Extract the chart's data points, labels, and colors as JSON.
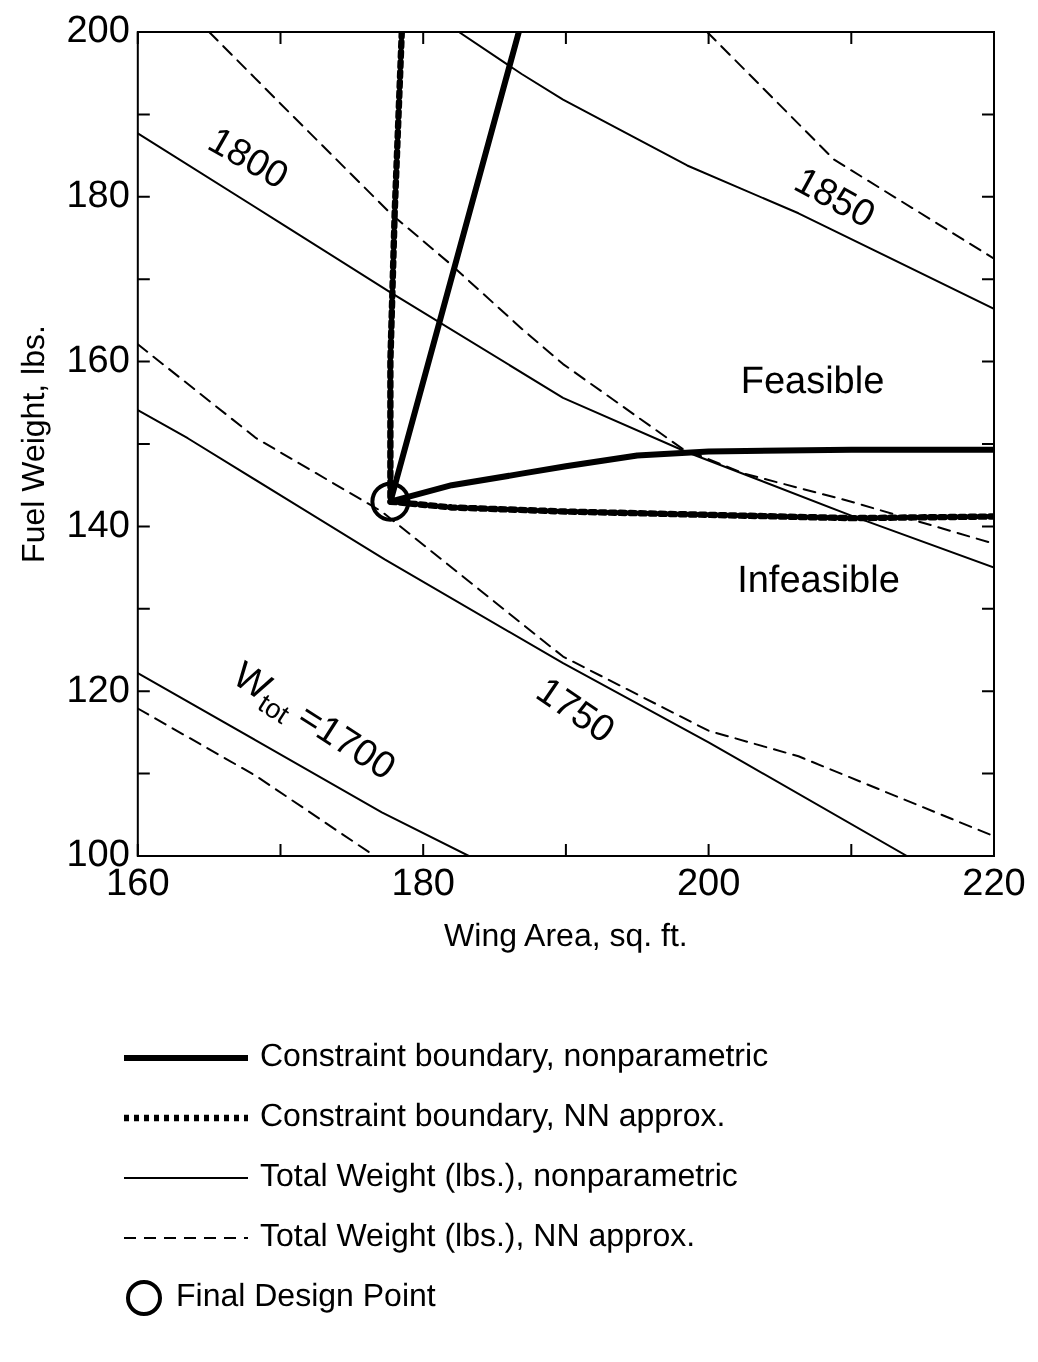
{
  "chart_data": {
    "type": "line",
    "xlabel": "Wing Area, sq. ft.",
    "ylabel": "Fuel Weight, lbs.",
    "xlim": [
      160,
      220
    ],
    "xticks": [
      160,
      {
        "value": 170,
        "label": null
      },
      180,
      {
        "value": 190,
        "label": null
      },
      200,
      {
        "value": 210,
        "label": null
      },
      220
    ],
    "ylim": [
      100,
      200
    ],
    "yticks": [
      100,
      {
        "value": 110,
        "label": null
      },
      120,
      {
        "value": 130,
        "label": null
      },
      140,
      {
        "value": 150,
        "label": null
      },
      160,
      {
        "value": 170,
        "label": null
      },
      180,
      {
        "value": 190,
        "label": null
      },
      200
    ],
    "grid": false,
    "legend": "bottom",
    "marker": "none",
    "series": [
      {
        "name": "Constraint boundary, nonparametric",
        "color": "#000000",
        "line_style": "solid",
        "x": [
          186.7,
          177.7,
          182,
          186.9,
          190,
          195,
          200,
          210,
          220
        ],
        "values": [
          200,
          143,
          145,
          146.4,
          147.3,
          148.6,
          149.1,
          149.3,
          149.3
        ]
      },
      {
        "name": "Constraint boundary, NN approx.",
        "color": "#000000",
        "line_style": "dotted",
        "x": [
          178.5,
          178,
          177.7,
          177.7,
          182,
          190,
          200,
          210,
          220
        ],
        "values": [
          200,
          178,
          160,
          143,
          142.3,
          141.8,
          141.4,
          141,
          141.2
        ]
      },
      {
        "name": "Total Weight (lbs.), nonparametric",
        "color": "#000000",
        "line_style": "solid",
        "x": [
          160,
          170.2,
          177.7,
          189.8,
          198.5,
          210,
          220
        ],
        "values": [
          187.7,
          176.6,
          168.4,
          155.6,
          149,
          141.3,
          135
        ]
      },
      {
        "name": "Total Weight (lbs.), NN approx.",
        "color": "#000000",
        "line_style": "dashed",
        "x": [
          165,
          170,
          177.7,
          181.8,
          186.9,
          189.8,
          198.1,
          202.5,
          210,
          220
        ],
        "values": [
          200,
          191.3,
          178,
          172,
          164,
          159.7,
          149.5,
          146.4,
          143,
          137.9
        ]
      },
      {
        "color": "#000000",
        "line_style": "solid",
        "x": [
          182.5,
          186.9,
          189.8,
          198.5,
          206.3,
          220
        ],
        "values": [
          200,
          194.9,
          191.8,
          183.8,
          178,
          166.4
        ]
      },
      {
        "color": "#000000",
        "line_style": "dashed",
        "x": [
          199.9,
          208.8,
          220
        ],
        "values": [
          200,
          184.5,
          172.5
        ]
      },
      {
        "color": "#000000",
        "line_style": "solid",
        "x": [
          160,
          163.5,
          177.3,
          189.8,
          200,
          213.9
        ],
        "values": [
          154.1,
          150.7,
          136,
          123.4,
          113.8,
          100
        ]
      },
      {
        "color": "#000000",
        "line_style": "dashed",
        "x": [
          160,
          168.3,
          177.1,
          189.8,
          200,
          206.3,
          220
        ],
        "values": [
          162.1,
          150.7,
          141.8,
          124.2,
          115.2,
          112.1,
          102.4
        ]
      },
      {
        "color": "#000000",
        "line_style": "solid",
        "x": [
          160,
          168.3,
          177.1,
          183.2
        ],
        "values": [
          122.2,
          114,
          105.3,
          100
        ]
      },
      {
        "color": "#000000",
        "line_style": "dashed",
        "x": [
          160,
          168.3,
          176.6
        ],
        "values": [
          117.9,
          109.7,
          100
        ]
      },
      {
        "name": "Final Design Point",
        "type": "scatter",
        "marker": "circle",
        "color": "#000000",
        "x": [
          177.7
        ],
        "values": [
          143
        ]
      }
    ],
    "annotations": [
      "1800",
      "1850",
      "1750",
      "W$_{tot}$ =1700",
      "Feasible",
      "Infeasible"
    ]
  }
}
